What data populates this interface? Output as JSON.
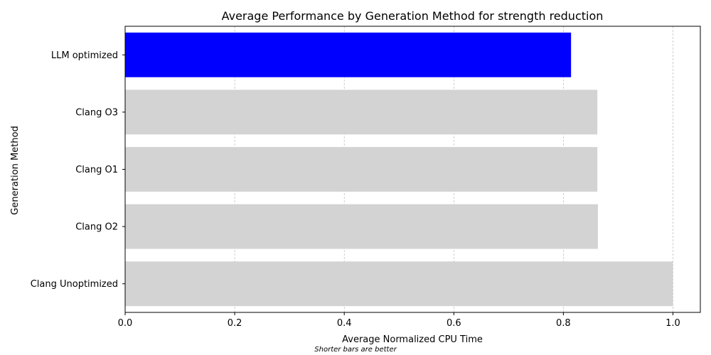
{
  "chart_data": {
    "type": "bar",
    "orientation": "horizontal",
    "title": "Average Performance by Generation Method for strength reduction",
    "xlabel": "Average Normalized CPU Time",
    "ylabel": "Generation Method",
    "note": "Shorter bars are better",
    "xlim": [
      0,
      1.05
    ],
    "xticks": [
      "0.0",
      "0.2",
      "0.4",
      "0.6",
      "0.8",
      "1.0"
    ],
    "xtick_values": [
      0.0,
      0.2,
      0.4,
      0.6,
      0.8,
      1.0
    ],
    "grid": "x-dashed",
    "categories": [
      "LLM optimized",
      "Clang O3",
      "Clang O1",
      "Clang O2",
      "Clang Unoptimized"
    ],
    "values": [
      0.814,
      0.862,
      0.862,
      0.863,
      1.0
    ],
    "bar_colors": [
      "#0000ff",
      "#d3d3d3",
      "#d3d3d3",
      "#d3d3d3",
      "#d3d3d3"
    ]
  }
}
